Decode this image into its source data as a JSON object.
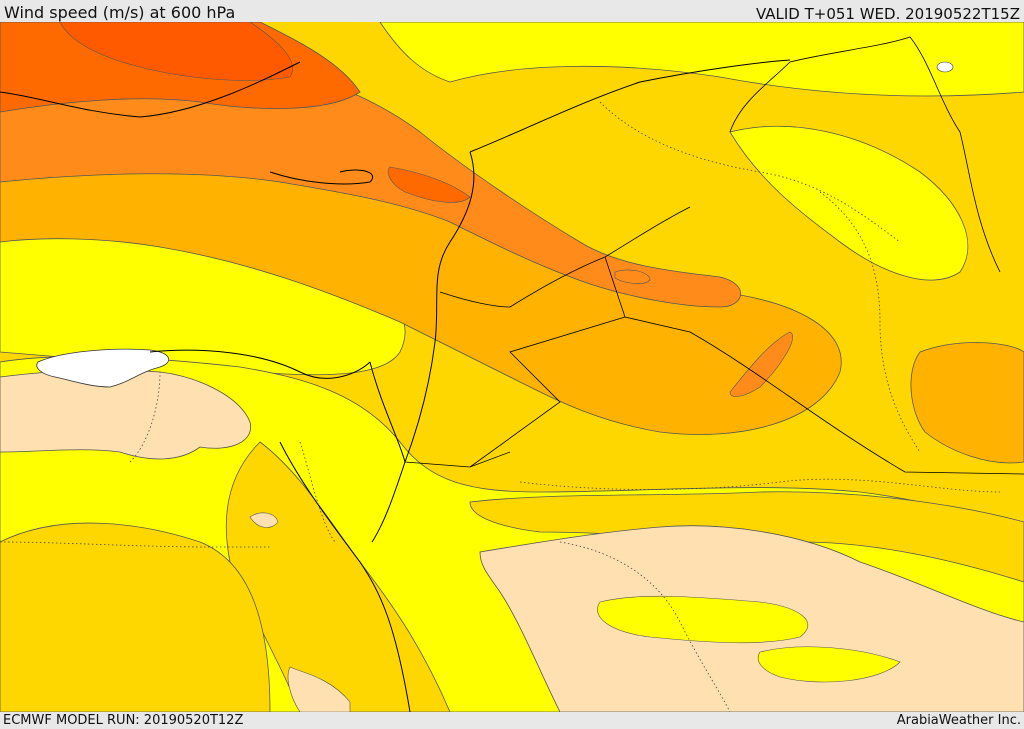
{
  "header": {
    "title": "Wind speed (m/s) at 600 hPa",
    "valid_time": "VALID T+051 WED. 20190522T15Z"
  },
  "footer": {
    "model_run": "ECMWF MODEL RUN: 20190520T12Z",
    "credit": "ArabiaWeather Inc."
  },
  "colors": {
    "calm": "#ffe0b0",
    "light": "#ffff00",
    "moderate": "#ffd700",
    "fresh": "#ffb300",
    "strong": "#ff8c1a",
    "very_strong": "#ff6a00",
    "extreme": "#ff5a00",
    "land_no_data": "#ffffff",
    "contour": "#555555",
    "border": "#000000"
  }
}
